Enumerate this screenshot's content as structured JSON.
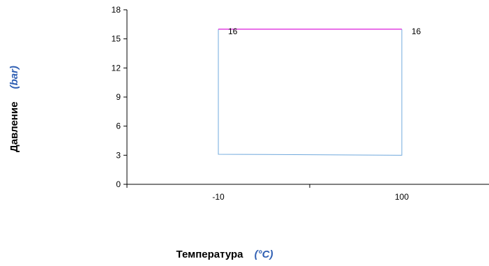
{
  "chart_data": {
    "type": "line",
    "title": "",
    "xlabel": "Температура",
    "xunit": "(°C)",
    "ylabel": "Давление",
    "yunit": "(bar)",
    "x_ticks": [
      "-10",
      "100"
    ],
    "y_ticks": [
      0,
      3,
      6,
      9,
      12,
      15,
      18
    ],
    "ylim": [
      0,
      18
    ],
    "grid": false,
    "legend": "none",
    "series": [
      {
        "color": "#6fa8dc",
        "points": [
          [
            -10,
            16
          ],
          [
            -10,
            3.1
          ],
          [
            100,
            3.0
          ],
          [
            100,
            16
          ]
        ]
      },
      {
        "color": "#e040e0",
        "points": [
          [
            -10,
            16
          ],
          [
            100,
            16
          ]
        ]
      }
    ],
    "data_labels": [
      {
        "x": -10,
        "y": 16,
        "text": "16"
      },
      {
        "x": 100,
        "y": 16,
        "text": "16"
      }
    ],
    "colors": {
      "axis": "#000000",
      "unit_text": "#2f5fb3"
    }
  }
}
